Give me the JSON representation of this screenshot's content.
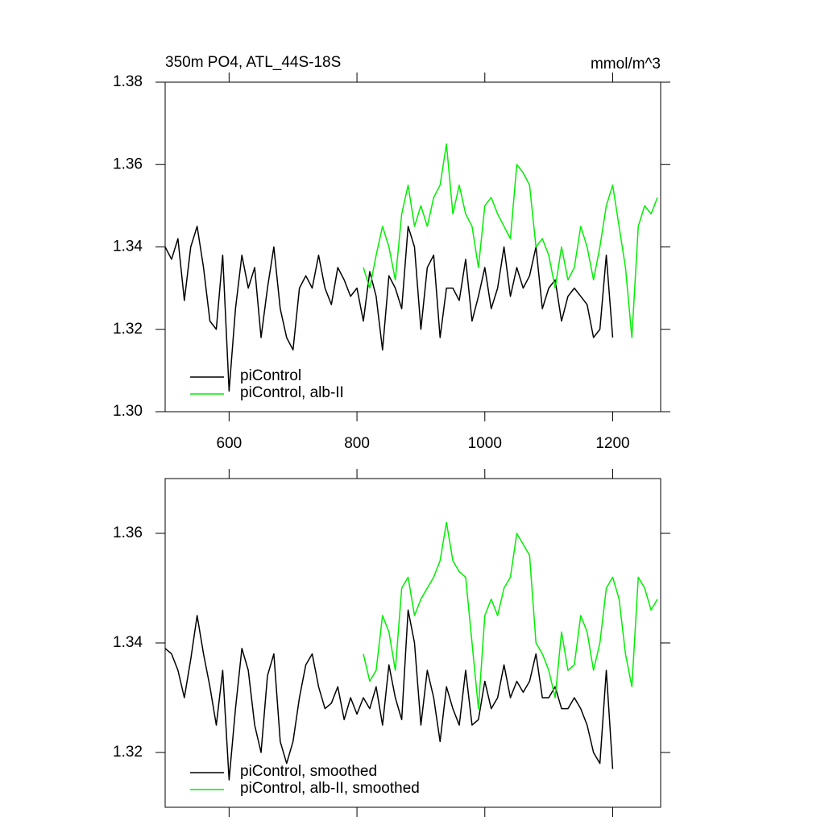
{
  "chart_data": [
    {
      "type": "line",
      "title": "350m PO4, ATL_44S-18S",
      "units": "mmol/m^3",
      "xlim": [
        500,
        1275
      ],
      "xticks": [
        600,
        800,
        1000,
        1200
      ],
      "show_xtick_labels": true,
      "ylim": [
        1.3,
        1.38
      ],
      "yticks": [
        {
          "value": 1.3,
          "label": "1.30"
        },
        {
          "value": 1.32,
          "label": "1.32"
        },
        {
          "value": 1.34,
          "label": "1.34"
        },
        {
          "value": 1.36,
          "label": "1.36"
        },
        {
          "value": 1.38,
          "label": "1.38"
        }
      ],
      "legend": "lower left",
      "x": [
        500,
        510,
        520,
        530,
        540,
        550,
        560,
        570,
        580,
        590,
        600,
        610,
        620,
        630,
        640,
        650,
        660,
        670,
        680,
        690,
        700,
        710,
        720,
        730,
        740,
        750,
        760,
        770,
        780,
        790,
        800,
        810,
        820,
        830,
        840,
        850,
        860,
        870,
        880,
        890,
        900,
        910,
        920,
        930,
        940,
        950,
        960,
        970,
        980,
        990,
        1000,
        1010,
        1020,
        1030,
        1040,
        1050,
        1060,
        1070,
        1080,
        1090,
        1100,
        1110,
        1120,
        1130,
        1140,
        1150,
        1160,
        1170,
        1180,
        1190,
        1200,
        1210,
        1220,
        1230,
        1240,
        1250,
        1260,
        1270
      ],
      "series": [
        {
          "name": "piControl",
          "color": "#000000",
          "values": [
            1.34,
            1.337,
            1.342,
            1.327,
            1.34,
            1.345,
            1.335,
            1.322,
            1.32,
            1.338,
            1.305,
            1.325,
            1.338,
            1.33,
            1.335,
            1.318,
            1.33,
            1.34,
            1.325,
            1.318,
            1.315,
            1.33,
            1.333,
            1.33,
            1.338,
            1.33,
            1.326,
            1.335,
            1.332,
            1.328,
            1.33,
            1.322,
            1.334,
            1.328,
            1.315,
            1.333,
            1.33,
            1.325,
            1.345,
            1.34,
            1.32,
            1.335,
            1.338,
            1.318,
            1.33,
            1.33,
            1.327,
            1.337,
            1.322,
            1.328,
            1.335,
            1.325,
            1.33,
            1.34,
            1.328,
            1.335,
            1.33,
            1.333,
            1.34,
            1.325,
            1.33,
            1.332,
            1.322,
            1.328,
            1.33,
            1.328,
            1.326,
            1.318,
            1.32,
            1.338,
            1.318,
            null,
            null,
            null,
            null,
            null,
            null,
            null
          ]
        },
        {
          "name": "piControl, alb-II",
          "color": "#00ee00",
          "values": [
            null,
            null,
            null,
            null,
            null,
            null,
            null,
            null,
            null,
            null,
            null,
            null,
            null,
            null,
            null,
            null,
            null,
            null,
            null,
            null,
            null,
            null,
            null,
            null,
            null,
            null,
            null,
            null,
            null,
            null,
            null,
            1.335,
            1.33,
            1.338,
            1.345,
            1.34,
            1.332,
            1.348,
            1.355,
            1.345,
            1.35,
            1.345,
            1.352,
            1.355,
            1.365,
            1.348,
            1.355,
            1.348,
            1.345,
            1.335,
            1.35,
            1.352,
            1.348,
            1.345,
            1.342,
            1.36,
            1.358,
            1.355,
            1.34,
            1.342,
            1.338,
            1.33,
            1.34,
            1.332,
            1.335,
            1.345,
            1.34,
            1.332,
            1.34,
            1.35,
            1.355,
            1.345,
            1.335,
            1.318,
            1.345,
            1.35,
            1.348,
            1.352
          ]
        }
      ]
    },
    {
      "type": "line",
      "xlim": [
        500,
        1275
      ],
      "xticks": [
        600,
        800,
        1000,
        1200
      ],
      "show_xtick_labels": false,
      "ylim": [
        1.31,
        1.37
      ],
      "yticks": [
        {
          "value": 1.32,
          "label": "1.32"
        },
        {
          "value": 1.34,
          "label": "1.34"
        },
        {
          "value": 1.36,
          "label": "1.36"
        }
      ],
      "legend": "lower left",
      "x": [
        500,
        510,
        520,
        530,
        540,
        550,
        560,
        570,
        580,
        590,
        600,
        610,
        620,
        630,
        640,
        650,
        660,
        670,
        680,
        690,
        700,
        710,
        720,
        730,
        740,
        750,
        760,
        770,
        780,
        790,
        800,
        810,
        820,
        830,
        840,
        850,
        860,
        870,
        880,
        890,
        900,
        910,
        920,
        930,
        940,
        950,
        960,
        970,
        980,
        990,
        1000,
        1010,
        1020,
        1030,
        1040,
        1050,
        1060,
        1070,
        1080,
        1090,
        1100,
        1110,
        1120,
        1130,
        1140,
        1150,
        1160,
        1170,
        1180,
        1190,
        1200,
        1210,
        1220,
        1230,
        1240,
        1250,
        1260,
        1270
      ],
      "series": [
        {
          "name": "piControl, smoothed",
          "color": "#000000",
          "values": [
            1.339,
            1.338,
            1.335,
            1.33,
            1.337,
            1.345,
            1.338,
            1.332,
            1.325,
            1.335,
            1.315,
            1.328,
            1.339,
            1.335,
            1.325,
            1.32,
            1.334,
            1.338,
            1.322,
            1.318,
            1.322,
            1.33,
            1.336,
            1.338,
            1.332,
            1.328,
            1.329,
            1.332,
            1.326,
            1.33,
            1.327,
            1.33,
            1.328,
            1.332,
            1.325,
            1.336,
            1.33,
            1.326,
            1.346,
            1.34,
            1.325,
            1.335,
            1.33,
            1.322,
            1.332,
            1.328,
            1.325,
            1.335,
            1.325,
            1.326,
            1.333,
            1.328,
            1.33,
            1.336,
            1.33,
            1.333,
            1.331,
            1.333,
            1.338,
            1.33,
            1.33,
            1.332,
            1.328,
            1.328,
            1.33,
            1.328,
            1.325,
            1.32,
            1.318,
            1.335,
            1.317,
            null,
            null,
            null,
            null,
            null,
            null,
            null
          ]
        },
        {
          "name": "piControl, alb-II, smoothed",
          "color": "#00ee00",
          "values": [
            null,
            null,
            null,
            null,
            null,
            null,
            null,
            null,
            null,
            null,
            null,
            null,
            null,
            null,
            null,
            null,
            null,
            null,
            null,
            null,
            null,
            null,
            null,
            null,
            null,
            null,
            null,
            null,
            null,
            null,
            null,
            1.338,
            1.333,
            1.335,
            1.345,
            1.342,
            1.335,
            1.35,
            1.352,
            1.345,
            1.348,
            1.35,
            1.352,
            1.355,
            1.362,
            1.355,
            1.353,
            1.352,
            1.34,
            1.328,
            1.345,
            1.348,
            1.345,
            1.35,
            1.352,
            1.36,
            1.358,
            1.356,
            1.34,
            1.338,
            1.335,
            1.33,
            1.342,
            1.335,
            1.336,
            1.345,
            1.342,
            1.335,
            1.34,
            1.35,
            1.352,
            1.348,
            1.338,
            1.332,
            1.352,
            1.35,
            1.346,
            1.348
          ]
        }
      ]
    }
  ]
}
